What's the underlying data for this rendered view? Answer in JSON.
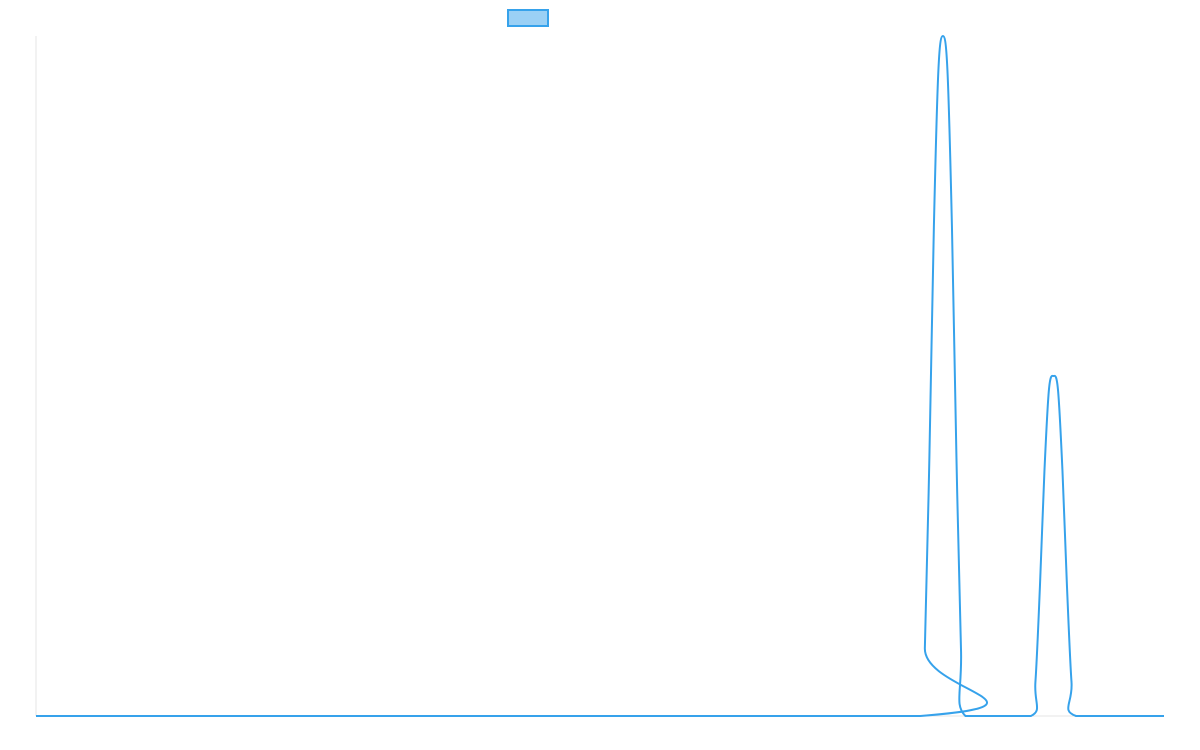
{
  "chart_data": {
    "type": "line",
    "title": "",
    "xlabel": "",
    "ylabel": "",
    "legend": {
      "placement": "top-center",
      "entries": [
        {
          "label": "",
          "color": "#36a2eb",
          "fill": "#9ad0f5"
        }
      ]
    },
    "grid": false,
    "xlim": [
      0,
      1
    ],
    "ylim": [
      0,
      1
    ],
    "series": [
      {
        "color": "#36a2eb",
        "x": [
          0,
          0.784,
          0.788,
          0.792,
          0.796,
          0.8,
          0.804,
          0.808,
          0.812,
          0.816,
          0.82,
          0.824,
          0.882,
          0.886,
          0.89,
          0.894,
          0.898,
          0.902,
          0.906,
          0.91,
          0.914,
          0.918,
          0.922,
          1.0
        ],
        "values": [
          0,
          0,
          0.1,
          0.38,
          0.72,
          0.95,
          1.0,
          0.95,
          0.72,
          0.38,
          0.1,
          0,
          0,
          0.05,
          0.19,
          0.36,
          0.48,
          0.5,
          0.48,
          0.36,
          0.19,
          0.05,
          0,
          0
        ]
      }
    ]
  }
}
